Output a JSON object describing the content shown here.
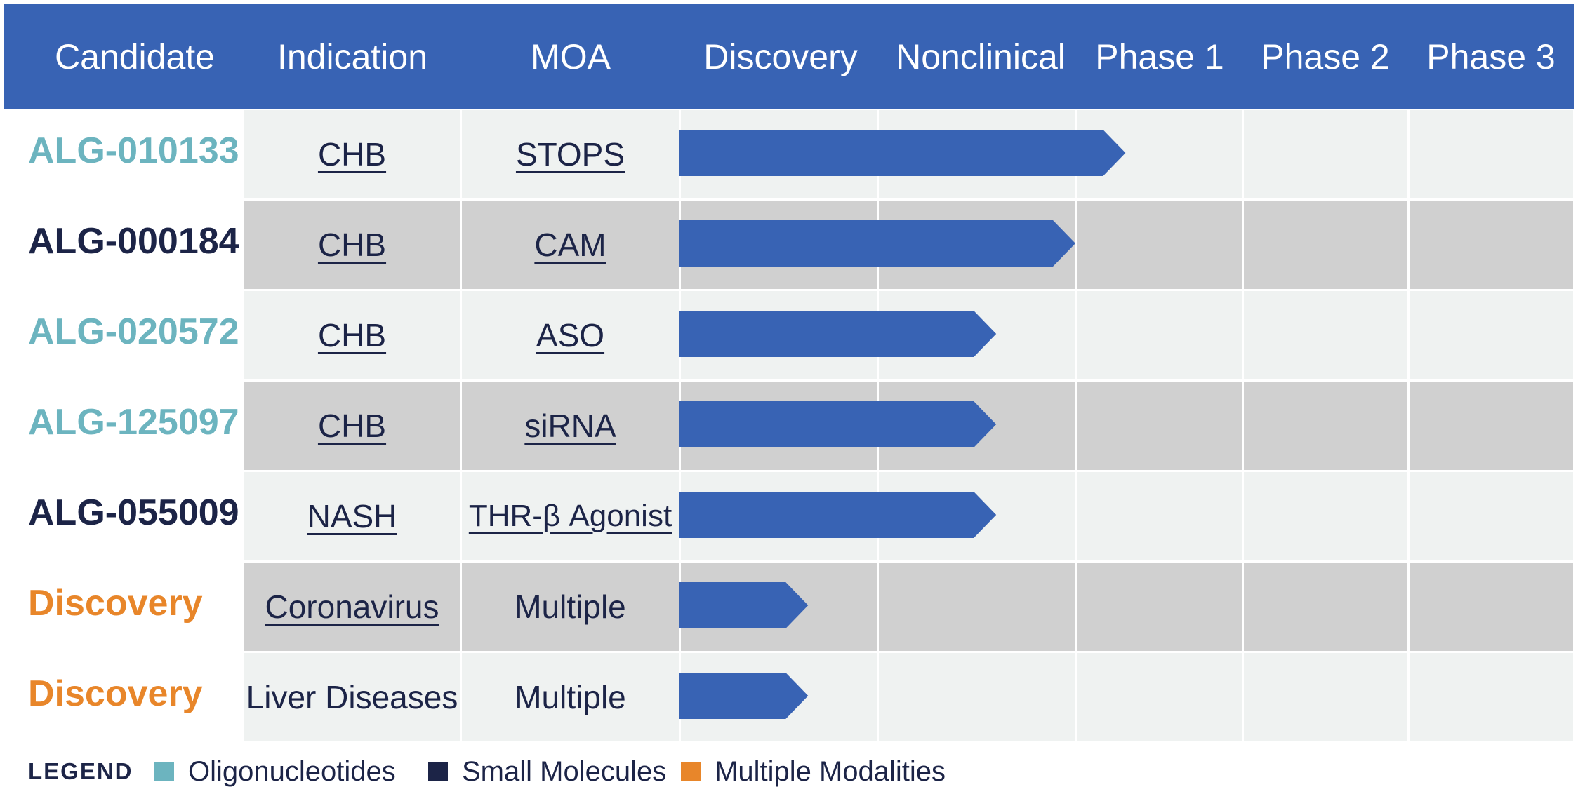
{
  "chart_data": {
    "type": "table",
    "columns": [
      "Candidate",
      "Indication",
      "MOA",
      "Discovery",
      "Nonclinical",
      "Phase 1",
      "Phase 2",
      "Phase 3"
    ],
    "stages": [
      "Discovery",
      "Nonclinical",
      "Phase 1",
      "Phase 2",
      "Phase 3"
    ],
    "rows": [
      {
        "candidate": "ALG-010133",
        "modality": "Oligonucleotides",
        "indication": "CHB",
        "moa": "STOPS",
        "progress_stages": 2.3
      },
      {
        "candidate": "ALG-000184",
        "modality": "Small Molecules",
        "indication": "CHB",
        "moa": "CAM",
        "progress_stages": 2.0
      },
      {
        "candidate": "ALG-020572",
        "modality": "Oligonucleotides",
        "indication": "CHB",
        "moa": "ASO",
        "progress_stages": 1.6
      },
      {
        "candidate": "ALG-125097",
        "modality": "Oligonucleotides",
        "indication": "CHB",
        "moa": "siRNA",
        "progress_stages": 1.6
      },
      {
        "candidate": "ALG-055009",
        "modality": "Small Molecules",
        "indication": "NASH",
        "moa": "THR-β Agonist",
        "progress_stages": 1.6
      },
      {
        "candidate": "Discovery",
        "modality": "Multiple Modalities",
        "indication": "Coronavirus",
        "moa": "Multiple",
        "progress_stages": 0.65
      },
      {
        "candidate": "Discovery",
        "modality": "Multiple Modalities",
        "indication": "Liver Diseases",
        "moa": "Multiple",
        "progress_stages": 0.65
      }
    ],
    "legend_title": "LEGEND",
    "legend": [
      {
        "label": "Oligonucleotides",
        "color": "#6cb4bf"
      },
      {
        "label": "Small Molecules",
        "color": "#1c2447"
      },
      {
        "label": "Multiple Modalities",
        "color": "#e8862a"
      }
    ]
  },
  "colors": {
    "header": "#3863b4",
    "bar": "#3863b4",
    "row_light": "#eff2f1",
    "row_dark": "#d0d0d0"
  }
}
